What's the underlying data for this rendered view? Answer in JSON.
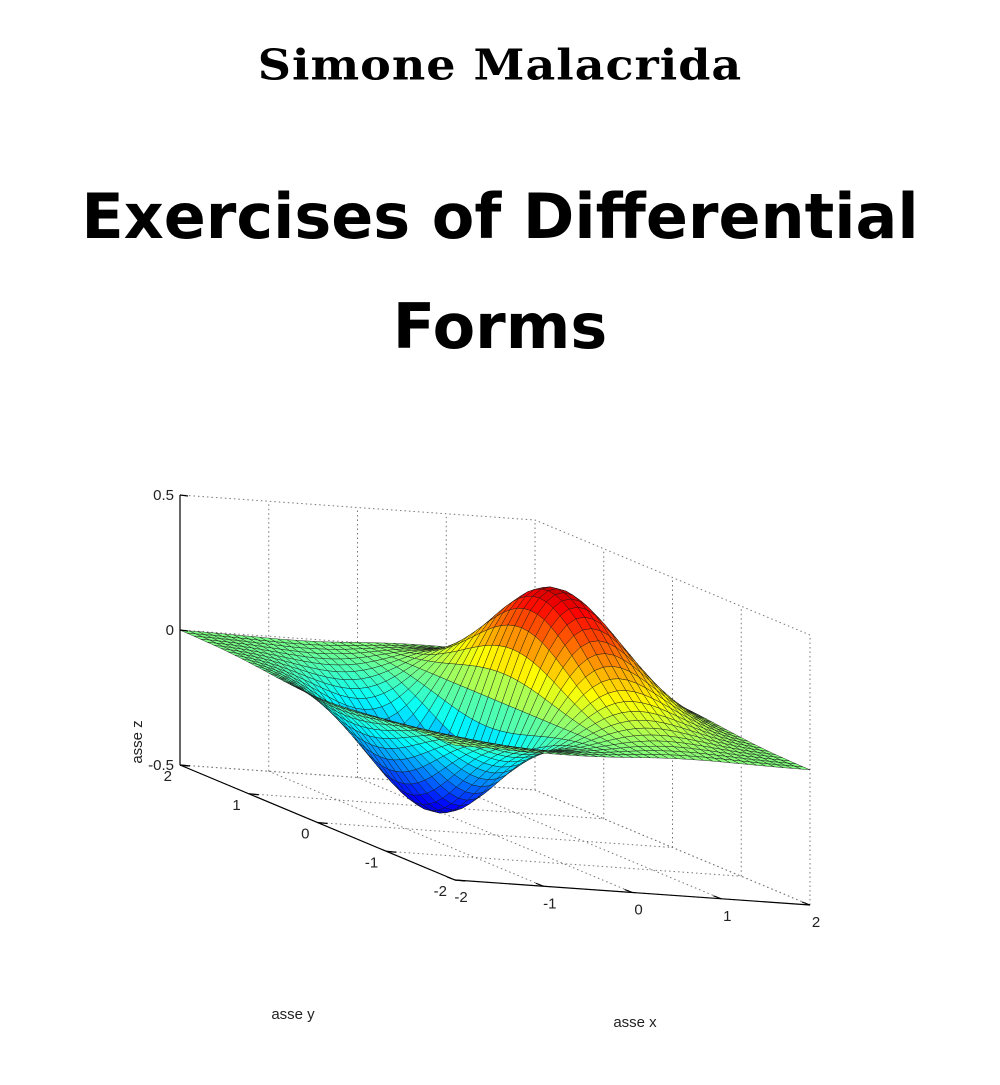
{
  "cover": {
    "author": "Simone Malacrida",
    "title_line1": "Exercises of Differential",
    "title_line2": "Forms"
  },
  "chart_data": {
    "type": "surface",
    "title": "",
    "xlabel": "asse x",
    "ylabel": "asse y",
    "zlabel": "asse z",
    "xlim": [
      -2,
      2
    ],
    "ylim": [
      -2,
      2
    ],
    "zlim": [
      -0.5,
      0.5
    ],
    "x_ticks": [
      "-2",
      "-1",
      "0",
      "1",
      "2"
    ],
    "y_ticks": [
      "-2",
      "-1",
      "0",
      "1",
      "2"
    ],
    "z_ticks": [
      "-0.5",
      "0",
      "0.5"
    ],
    "grid": true,
    "colormap": "jet",
    "surface_approx": "z = x * exp(-x^2 - y^2)"
  }
}
